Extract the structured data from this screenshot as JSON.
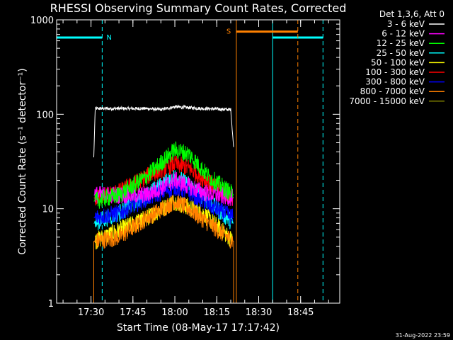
{
  "chart_data": {
    "type": "line",
    "title": "RHESSI Observing Summary Count Rates, Corrected",
    "xlabel": "Start Time (08-May-17 17:17:42)",
    "ylabel": "Corrected Count Rate (s⁻¹ detector⁻¹)",
    "yscale": "log",
    "ylim": [
      1,
      1000
    ],
    "xlim": [
      "17:17:42",
      "18:59:00"
    ],
    "x_ticks": [
      "17:30",
      "17:45",
      "18:00",
      "18:15",
      "18:30",
      "18:45"
    ],
    "y_ticks": [
      "1",
      "10",
      "100",
      "1000"
    ],
    "legend_title": "Det 1,3,6, Att 0",
    "legend_position": "right",
    "series": [
      {
        "name": "3 - 6 keV",
        "color": "#ffffff",
        "data": [
          [
            "17:31",
            35
          ],
          [
            "17:31:30",
            115
          ],
          [
            "17:50",
            115
          ],
          [
            "17:55",
            112
          ],
          [
            "18:00",
            120
          ],
          [
            "18:10",
            115
          ],
          [
            "18:20",
            112
          ],
          [
            "18:21",
            45
          ]
        ]
      },
      {
        "name": "6 - 12 keV",
        "color": "#ff00ff",
        "data": [
          [
            "17:31",
            14
          ],
          [
            "17:50",
            14
          ],
          [
            "18:00",
            20
          ],
          [
            "18:10",
            15
          ],
          [
            "18:21",
            13
          ]
        ]
      },
      {
        "name": "12 - 25 keV",
        "color": "#00ff00",
        "data": [
          [
            "17:31",
            12
          ],
          [
            "17:40",
            14
          ],
          [
            "17:50",
            22
          ],
          [
            "18:00",
            42
          ],
          [
            "18:05",
            38
          ],
          [
            "18:12",
            22
          ],
          [
            "18:21",
            14
          ]
        ]
      },
      {
        "name": "25 - 50 keV",
        "color": "#00ffff",
        "data": [
          [
            "17:31",
            7
          ],
          [
            "17:40",
            9
          ],
          [
            "17:50",
            14
          ],
          [
            "18:00",
            22
          ],
          [
            "18:05",
            18
          ],
          [
            "18:12",
            12
          ],
          [
            "18:21",
            7
          ]
        ]
      },
      {
        "name": "50 - 100 keV",
        "color": "#ffff00",
        "data": [
          [
            "17:31",
            4.5
          ],
          [
            "17:50",
            8
          ],
          [
            "18:00",
            12
          ],
          [
            "18:10",
            9
          ],
          [
            "18:21",
            4.5
          ]
        ]
      },
      {
        "name": "100 - 300 keV",
        "color": "#ff0000",
        "data": [
          [
            "17:31",
            13
          ],
          [
            "17:40",
            15
          ],
          [
            "17:50",
            22
          ],
          [
            "18:00",
            30
          ],
          [
            "18:05",
            27
          ],
          [
            "18:12",
            19
          ],
          [
            "18:21",
            13
          ]
        ]
      },
      {
        "name": "300 - 800 keV",
        "color": "#0000ff",
        "data": [
          [
            "17:31",
            8
          ],
          [
            "17:40",
            9
          ],
          [
            "17:50",
            13
          ],
          [
            "18:00",
            17
          ],
          [
            "18:05",
            15
          ],
          [
            "18:12",
            11
          ],
          [
            "18:21",
            8
          ]
        ]
      },
      {
        "name": "800 - 7000 keV",
        "color": "#ff8000",
        "data": [
          [
            "17:31",
            4.5
          ],
          [
            "17:40",
            5
          ],
          [
            "17:50",
            8
          ],
          [
            "18:00",
            12
          ],
          [
            "18:05",
            10
          ],
          [
            "18:12",
            7
          ],
          [
            "18:21",
            4.5
          ]
        ]
      },
      {
        "name": "7000 - 15000 keV",
        "color": "#808000",
        "data": []
      }
    ],
    "flags": [
      {
        "label": "N",
        "color": "#00ffff",
        "level": 650,
        "start": "17:17:42",
        "end": "17:34",
        "start_kind": "solid",
        "end_kind": "dashed"
      },
      {
        "label": "",
        "color": "#00ffff",
        "level": 650,
        "start": "18:35",
        "end": "18:53",
        "start_kind": "solid",
        "end_kind": "dashed"
      },
      {
        "label": "S",
        "color": "#ff8000",
        "level": 750,
        "start": "18:22",
        "end": "18:44",
        "start_kind": "solid",
        "end_kind": "dashed"
      }
    ]
  },
  "timestamp": "31-Aug-2022 23:59"
}
